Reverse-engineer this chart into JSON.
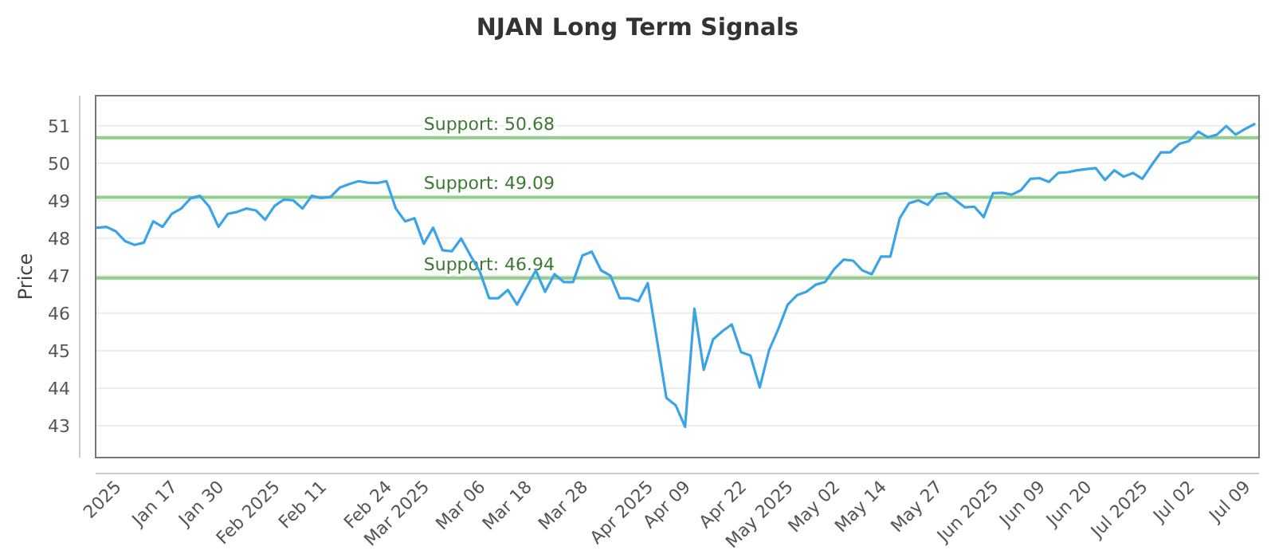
{
  "chart_data": {
    "type": "line",
    "title": "NJAN Long Term Signals",
    "ylabel": "Price",
    "categories": [
      null,
      null,
      "2025",
      null,
      null,
      null,
      null,
      null,
      "Jan 17",
      null,
      null,
      null,
      null,
      "Jan 30",
      null,
      null,
      null,
      null,
      null,
      "Feb 2025",
      null,
      null,
      null,
      null,
      "Feb 11",
      null,
      null,
      null,
      null,
      null,
      null,
      "Feb 24",
      null,
      null,
      null,
      "Mar 2025",
      null,
      null,
      null,
      null,
      null,
      "Mar 06",
      null,
      null,
      null,
      null,
      "Mar 18",
      null,
      null,
      null,
      null,
      null,
      "Mar 28",
      null,
      null,
      null,
      null,
      null,
      null,
      "Apr 2025",
      null,
      null,
      null,
      "Apr 09",
      null,
      null,
      null,
      null,
      null,
      "Apr 22",
      null,
      null,
      null,
      null,
      "May 2025",
      null,
      null,
      null,
      null,
      "May 02",
      null,
      null,
      null,
      null,
      "May 14",
      null,
      null,
      null,
      null,
      null,
      "May 27",
      null,
      null,
      null,
      null,
      null,
      "Jun 2025",
      null,
      null,
      null,
      null,
      "Jun 09",
      null,
      null,
      null,
      null,
      "Jun 20",
      null,
      null,
      null,
      null,
      null,
      "Jul 2025",
      null,
      null,
      null,
      null,
      "Jul 02",
      null,
      null,
      null,
      null,
      null,
      "Jul 09",
      null
    ],
    "values": [
      48.28,
      48.3,
      48.18,
      47.92,
      47.82,
      47.88,
      48.45,
      48.3,
      48.65,
      48.79,
      49.06,
      49.13,
      48.84,
      48.3,
      48.65,
      48.7,
      48.79,
      48.74,
      48.49,
      48.86,
      49.03,
      49.01,
      48.79,
      49.13,
      49.07,
      49.1,
      49.35,
      49.44,
      49.52,
      49.48,
      49.47,
      49.52,
      48.79,
      48.45,
      48.53,
      47.85,
      48.28,
      47.68,
      47.65,
      47.99,
      47.54,
      47.11,
      46.4,
      46.4,
      46.62,
      46.23,
      46.69,
      47.14,
      46.57,
      47.04,
      46.83,
      46.83,
      47.54,
      47.64,
      47.14,
      47.0,
      46.4,
      46.4,
      46.32,
      46.8,
      45.27,
      43.74,
      43.54,
      42.97,
      46.12,
      44.49,
      45.3,
      45.52,
      45.7,
      44.96,
      44.87,
      44.02,
      45.01,
      45.58,
      46.23,
      46.48,
      46.57,
      46.76,
      46.83,
      47.18,
      47.43,
      47.4,
      47.14,
      47.04,
      47.51,
      47.51,
      48.53,
      48.93,
      49.01,
      48.89,
      49.17,
      49.2,
      49.01,
      48.82,
      48.84,
      48.56,
      49.2,
      49.21,
      49.16,
      49.28,
      49.58,
      49.6,
      49.5,
      49.74,
      49.76,
      49.81,
      49.84,
      49.87,
      49.55,
      49.81,
      49.64,
      49.74,
      49.58,
      49.95,
      50.29,
      50.29,
      50.52,
      50.59,
      50.84,
      50.69,
      50.76,
      50.99,
      50.76,
      50.91,
      51.04
    ],
    "color": "#3ba3e8",
    "ylim": [
      42.15,
      51.8
    ],
    "yticks": [
      43,
      44,
      45,
      46,
      47,
      48,
      49,
      50,
      51
    ],
    "grid": "y",
    "ref_lines": [
      {
        "axis": "y",
        "value": 50.68,
        "label": "Support: 50.68",
        "color": "#8fcf8a"
      },
      {
        "axis": "y",
        "value": 49.09,
        "label": "Support: 49.09",
        "color": "#8fcf8a"
      },
      {
        "axis": "y",
        "value": 46.94,
        "label": "Support: 46.94",
        "color": "#8fcf8a"
      }
    ]
  }
}
